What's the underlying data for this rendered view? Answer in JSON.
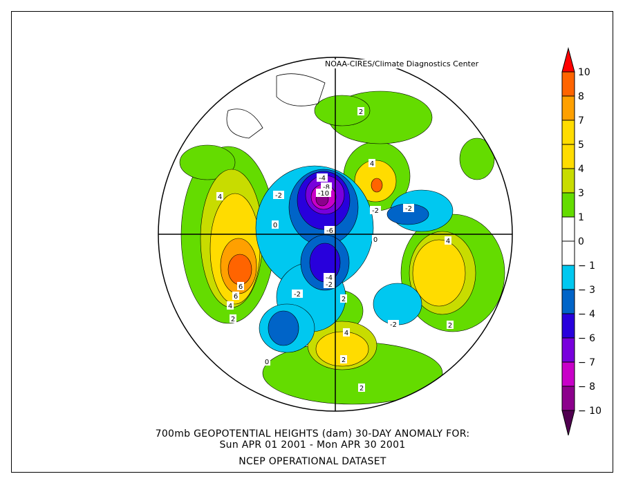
{
  "credit": "NOAA-CIRES/Climate Diagnostics Center",
  "caption": {
    "line1": "700mb GEOPOTENTIAL HEIGHTS (dam)   30-DAY ANOMALY FOR:",
    "line2": "Sun APR 01 2001 - Mon APR 30 2001",
    "line3": "NCEP OPERATIONAL DATASET"
  },
  "colorbar": {
    "labels": [
      "10",
      "8",
      "7",
      "5",
      "4",
      "3",
      "1",
      "0",
      "-1",
      "-3",
      "-4",
      "-6",
      "-7",
      "-8",
      "-10"
    ],
    "colors": [
      "#ff6400",
      "#ffa000",
      "#ffdc00",
      "#ffdc00",
      "#c8dc00",
      "#64dc00",
      "#ffffff",
      "#ffffff",
      "#00c8f0",
      "#0064c8",
      "#2800dc",
      "#7800dc",
      "#c800c8",
      "#8c008c"
    ],
    "over_color": "#ff0000",
    "under_color": "#500050"
  },
  "contour_labels": [
    "4",
    "6",
    "6",
    "4",
    "2",
    "4",
    "2",
    "4",
    "2",
    "-4",
    "-8",
    "-10",
    "-2",
    "-2",
    "0",
    "-6",
    "-4",
    "-2",
    "-2",
    "-2",
    "2",
    "2",
    "4",
    "2",
    "0",
    "-2",
    "0"
  ]
}
